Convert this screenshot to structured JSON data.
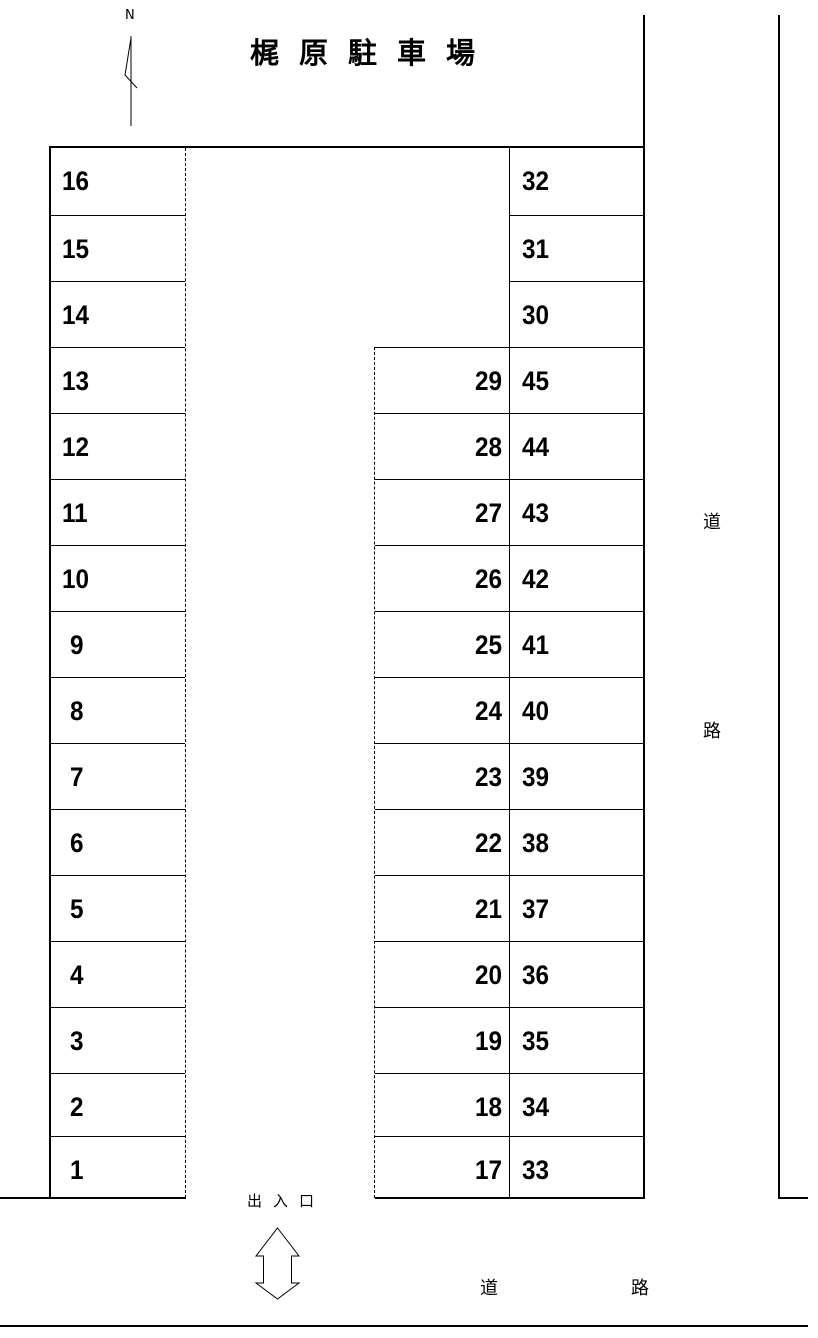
{
  "title": "梶原駐車場",
  "north_label": "N",
  "entrance_label": "出入口",
  "road_right": {
    "char1": "道",
    "char2": "路"
  },
  "road_bottom": {
    "char1": "道",
    "char2": "路"
  },
  "columns": {
    "left": [
      "16",
      "15",
      "14",
      "13",
      "12",
      "11",
      "10",
      "9",
      "8",
      "7",
      "6",
      "5",
      "4",
      "3",
      "2",
      "1"
    ],
    "middle": [
      "29",
      "28",
      "27",
      "26",
      "25",
      "24",
      "23",
      "22",
      "21",
      "20",
      "19",
      "18",
      "17"
    ],
    "right": [
      "32",
      "31",
      "30",
      "45",
      "44",
      "43",
      "42",
      "41",
      "40",
      "39",
      "38",
      "37",
      "36",
      "35",
      "34",
      "33"
    ]
  }
}
